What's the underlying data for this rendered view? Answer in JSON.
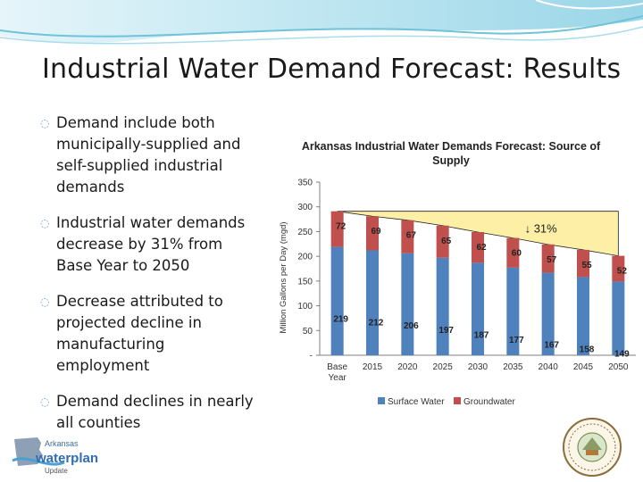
{
  "slide": {
    "title": "Industrial Water Demand Forecast: Results",
    "bullets": [
      "Demand include both municipally-supplied and self-supplied industrial demands",
      "Industrial water demands decrease by 31% from Base Year to 2050",
      "Decrease attributed to projected decline in manufacturing employment",
      "Demand declines in nearly all counties"
    ]
  },
  "logo": {
    "line1": "Arkansas",
    "line2": "waterplan",
    "line3": "Update"
  },
  "colors": {
    "surface": "#4f81bd",
    "ground": "#c0504d",
    "trend_fill": "#fdf0a6",
    "swoosh": "#6fc3d8"
  },
  "chart_data": {
    "type": "bar",
    "stacked": true,
    "title": "Arkansas Industrial Water Demands Forecast: Source of Supply",
    "ylabel": "Million Gallons per Day (mgd)",
    "ylim": [
      0,
      350
    ],
    "yticks": [
      "-",
      "50",
      "100",
      "150",
      "200",
      "250",
      "300",
      "350"
    ],
    "categories": [
      "Base Year",
      "2015",
      "2020",
      "2025",
      "2030",
      "2035",
      "2040",
      "2045",
      "2050"
    ],
    "series": [
      {
        "name": "Surface Water",
        "values": [
          219,
          212,
          206,
          197,
          187,
          177,
          167,
          158,
          149
        ]
      },
      {
        "name": "Groundwater",
        "values": [
          72,
          69,
          67,
          65,
          62,
          60,
          57,
          55,
          52
        ]
      }
    ],
    "annotation": "↓ 31%",
    "legend": "bottom"
  }
}
